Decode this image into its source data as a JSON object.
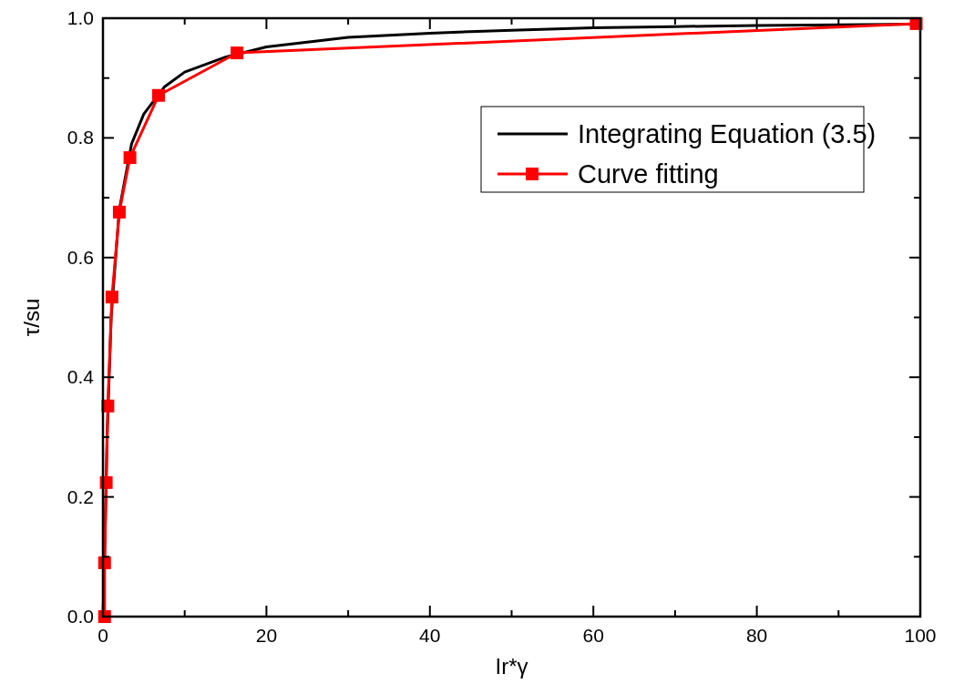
{
  "chart_data": {
    "type": "line",
    "xlabel": "Ir*γ",
    "ylabel": "τ/su",
    "xlim": [
      0,
      100
    ],
    "ylim": [
      0,
      1
    ],
    "xticks": [
      0,
      {
        "value": 10,
        "label": null
      },
      20,
      {
        "value": 30,
        "label": null
      },
      40,
      {
        "value": 50,
        "label": null
      },
      60,
      {
        "value": 70,
        "label": null
      },
      80,
      {
        "value": 90,
        "label": null
      },
      100
    ],
    "yticks": [
      "0.0",
      {
        "value": 0.1,
        "label": null
      },
      {
        "value": 0.2,
        "label": "0.2"
      },
      {
        "value": 0.3,
        "label": null
      },
      {
        "value": 0.4,
        "label": "0.4"
      },
      {
        "value": 0.5,
        "label": null
      },
      {
        "value": 0.6,
        "label": "0.6"
      },
      {
        "value": 0.7,
        "label": null
      },
      {
        "value": 0.8,
        "label": "0.8"
      },
      {
        "value": 0.9,
        "label": null
      },
      {
        "value": 1,
        "label": "1.0"
      }
    ],
    "grid": false,
    "legend": "top right",
    "line_style": "solid",
    "series": [
      {
        "name": "Integrating Equation (3.5)",
        "color": "#000000",
        "marker": "none",
        "x": [
          0,
          0.2,
          0.5,
          1,
          2,
          3.5,
          5,
          7.5,
          10,
          15,
          20,
          30,
          40,
          50,
          60,
          70,
          80,
          90,
          99.5
        ],
        "values": [
          0,
          0.1,
          0.3,
          0.5,
          0.68,
          0.79,
          0.84,
          0.885,
          0.91,
          0.935,
          0.952,
          0.968,
          0.975,
          0.98,
          0.984,
          0.986,
          0.988,
          0.989,
          0.99
        ]
      },
      {
        "name": "Curve fitting",
        "color": "#ff0000",
        "marker": "square",
        "x": [
          0.2,
          0.2,
          0.4,
          0.6,
          1.1,
          2,
          3.3,
          6.8,
          16.4,
          99.5
        ],
        "values": [
          0,
          0.09,
          0.224,
          0.352,
          0.534,
          0.676,
          0.767,
          0.871,
          0.942,
          0.991
        ]
      }
    ]
  }
}
